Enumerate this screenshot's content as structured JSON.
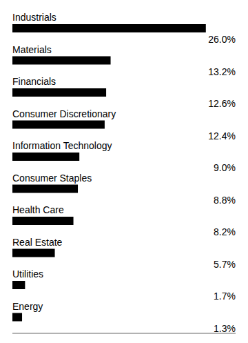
{
  "chart_data": {
    "type": "bar",
    "orientation": "horizontal",
    "categories": [
      "Industrials",
      "Materials",
      "Financials",
      "Consumer Discretionary",
      "Information Technology",
      "Consumer Staples",
      "Health Care",
      "Real Estate",
      "Utilities",
      "Energy"
    ],
    "values": [
      26.0,
      13.2,
      12.6,
      12.4,
      9.0,
      8.8,
      8.2,
      5.7,
      1.7,
      1.3
    ],
    "value_labels": [
      "26.0%",
      "13.2%",
      "12.6%",
      "12.4%",
      "9.0%",
      "8.8%",
      "8.2%",
      "5.7%",
      "1.7%",
      "1.3%"
    ],
    "data_labels": true,
    "color": "#000000",
    "xlim": [
      0,
      30
    ],
    "tick_labels": false
  }
}
